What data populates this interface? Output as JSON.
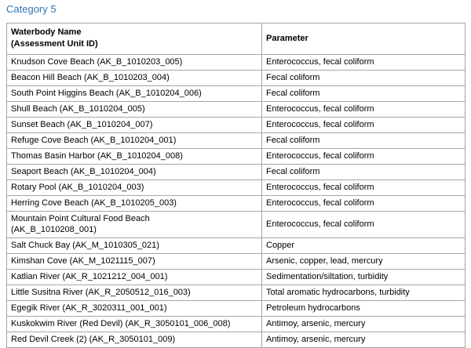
{
  "document": {
    "heading": "Category 5"
  },
  "colors": {
    "heading_blue": "#2E74B5",
    "table_border_gray": "#A6A6A6",
    "text_black": "#000000"
  },
  "table": {
    "columns": [
      {
        "label": "Waterbody Name\n(Assessment Unit ID)"
      },
      {
        "label": "Parameter"
      }
    ],
    "rows": [
      {
        "waterbody": "Knudson Cove Beach (AK_B_1010203_005)",
        "parameter": "Enterococcus, fecal coliform"
      },
      {
        "waterbody": "Beacon Hill Beach (AK_B_1010203_004)",
        "parameter": "Fecal coliform"
      },
      {
        "waterbody": "South Point Higgins Beach (AK_B_1010204_006)",
        "parameter": "Fecal coliform"
      },
      {
        "waterbody": "Shull Beach (AK_B_1010204_005)",
        "parameter": "Enterococcus, fecal coliform"
      },
      {
        "waterbody": "Sunset Beach (AK_B_1010204_007)",
        "parameter": "Enterococcus, fecal coliform"
      },
      {
        "waterbody": "Refuge Cove Beach (AK_B_1010204_001)",
        "parameter": "Fecal coliform"
      },
      {
        "waterbody": "Thomas Basin Harbor (AK_B_1010204_008)",
        "parameter": "Enterococcus, fecal coliform"
      },
      {
        "waterbody": "Seaport Beach (AK_B_1010204_004)",
        "parameter": "Fecal coliform"
      },
      {
        "waterbody": "Rotary Pool (AK_B_1010204_003)",
        "parameter": "Enterococcus, fecal coliform"
      },
      {
        "waterbody": "Herring Cove Beach (AK_B_1010205_003)",
        "parameter": "Enterococcus, fecal coliform"
      },
      {
        "waterbody": "Mountain Point Cultural Food Beach\n(AK_B_1010208_001)",
        "parameter": "Enterococcus, fecal coliform"
      },
      {
        "waterbody": "Salt Chuck Bay (AK_M_1010305_021)",
        "parameter": "Copper"
      },
      {
        "waterbody": "Kimshan Cove (AK_M_1021115_007)",
        "parameter": "Arsenic, copper, lead, mercury"
      },
      {
        "waterbody": "Katlian River (AK_R_1021212_004_001)",
        "parameter": "Sedimentation/siltation, turbidity"
      },
      {
        "waterbody": "Little Susitna River (AK_R_2050512_016_003)",
        "parameter": "Total aromatic hydrocarbons, turbidity"
      },
      {
        "waterbody": "Egegik River (AK_R_3020311_001_001)",
        "parameter": "Petroleum hydrocarbons"
      },
      {
        "waterbody": "Kuskokwim River (Red Devil) (AK_R_3050101_006_008)",
        "parameter": "Antimoy, arsenic, mercury"
      },
      {
        "waterbody": "Red Devil Creek (2) (AK_R_3050101_009)",
        "parameter": "Antimoy, arsenic, mercury"
      }
    ]
  }
}
